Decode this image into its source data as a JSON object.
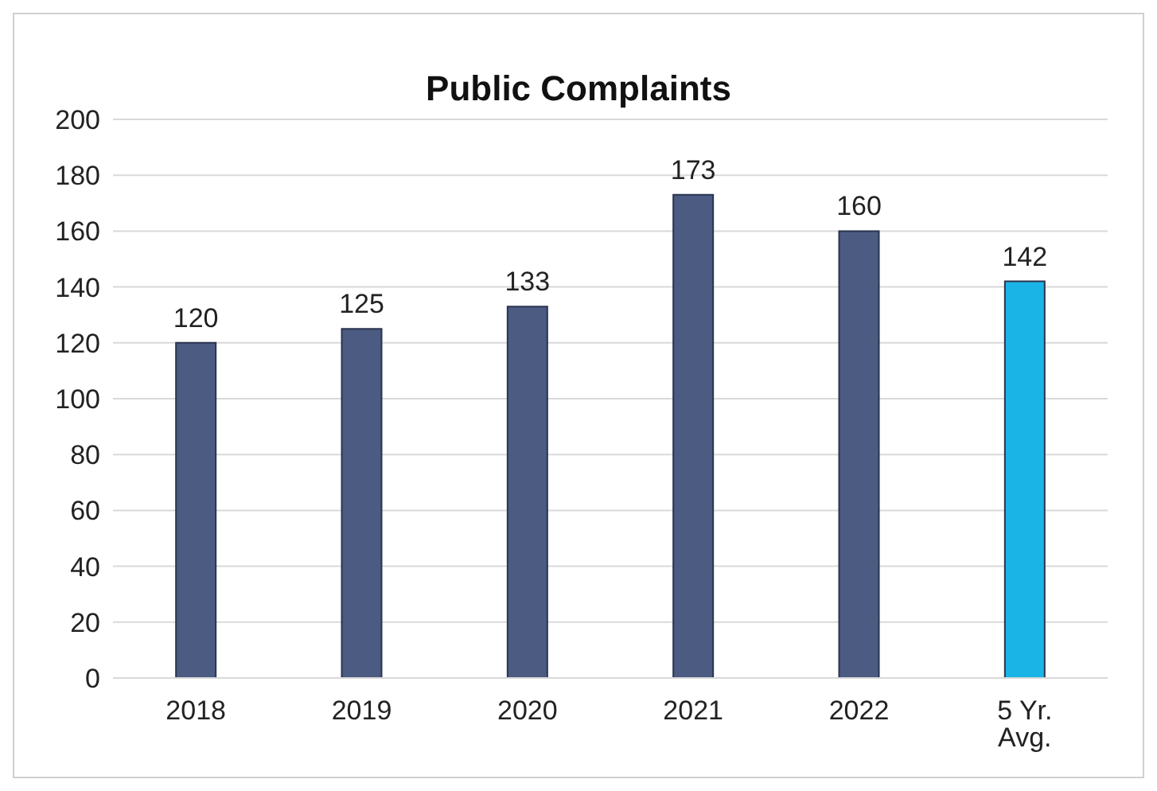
{
  "chart_data": {
    "type": "bar",
    "title": "Public Complaints",
    "categories": [
      "2018",
      "2019",
      "2020",
      "2021",
      "2022",
      "5 Yr. Avg."
    ],
    "values": [
      120,
      125,
      133,
      173,
      160,
      142
    ],
    "colors": [
      "#4b5b82",
      "#4b5b82",
      "#4b5b82",
      "#4b5b82",
      "#4b5b82",
      "#1ab4e6"
    ],
    "ylim": [
      0,
      200
    ],
    "yticks": [
      0,
      20,
      40,
      60,
      80,
      100,
      120,
      140,
      160,
      180,
      200
    ],
    "grid": "y",
    "data_labels": true,
    "legend": false
  }
}
